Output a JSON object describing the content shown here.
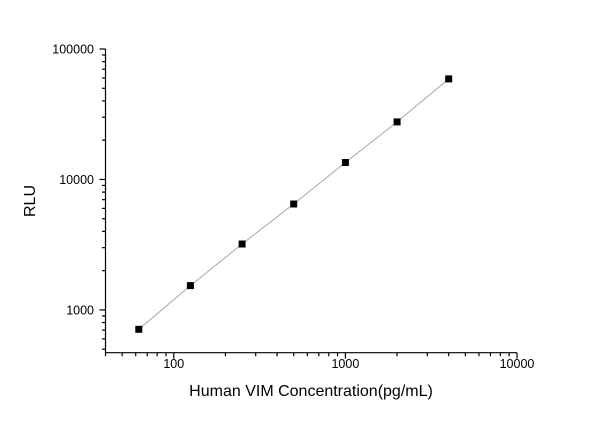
{
  "chart_data": {
    "type": "line",
    "title": "",
    "xlabel": "Human VIM Concentration(pg/mL)",
    "ylabel": "RLU",
    "x_scale": "log",
    "y_scale": "log",
    "x": [
      62.5,
      125,
      250,
      500,
      1000,
      2000,
      4000
    ],
    "y": [
      710,
      1535,
      3200,
      6480,
      13500,
      27600,
      59000
    ],
    "x_ticks": [
      100,
      1000,
      10000
    ],
    "x_tick_labels": [
      "100",
      "1000",
      "10000"
    ],
    "y_ticks": [
      1000,
      10000,
      100000
    ],
    "y_tick_labels": [
      "1000",
      "10000",
      "100000"
    ],
    "xlim": [
      40,
      10000
    ],
    "ylim": [
      470,
      100000
    ],
    "grid": false,
    "legend": "none",
    "marker": "filled-square",
    "marker_size": 7,
    "marker_color": "#000000",
    "line_color": "#a6a6a6",
    "axis_color": "#000000",
    "background_color": "#ffffff"
  }
}
